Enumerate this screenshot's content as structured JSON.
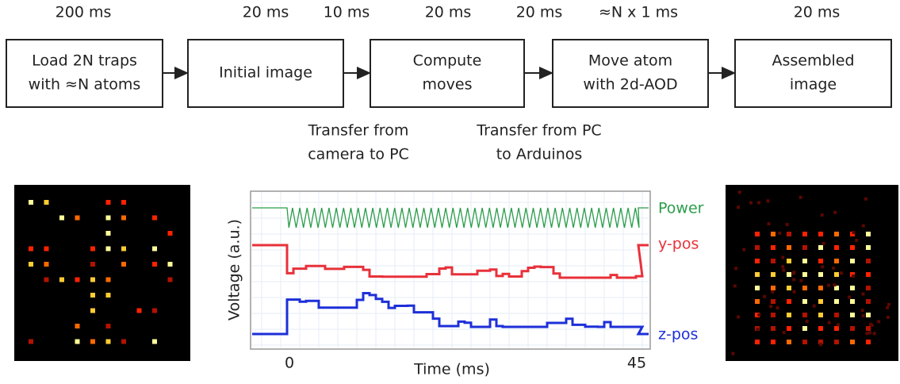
{
  "timings": [
    "200 ms",
    "20 ms",
    "10 ms",
    "20 ms",
    "20 ms",
    "≈N x 1 ms",
    "20 ms"
  ],
  "steps": [
    [
      "Load 2N traps",
      "with ≈N atoms"
    ],
    [
      "Initial image"
    ],
    [
      "Compute",
      "moves"
    ],
    [
      "Move atom",
      "with 2d-AOD"
    ],
    [
      "Assembled",
      "image"
    ]
  ],
  "transfers": [
    [
      "Transfer from",
      "camera to PC"
    ],
    [
      "Transfer from PC",
      "to Arduinos"
    ]
  ],
  "plot": {
    "y_label": "Voltage (a.u.)",
    "x_label": "Time (ms)",
    "x_tick_labels": [
      "0",
      "45"
    ],
    "traces": [
      "Power",
      "y-pos",
      "z-pos"
    ]
  }
}
